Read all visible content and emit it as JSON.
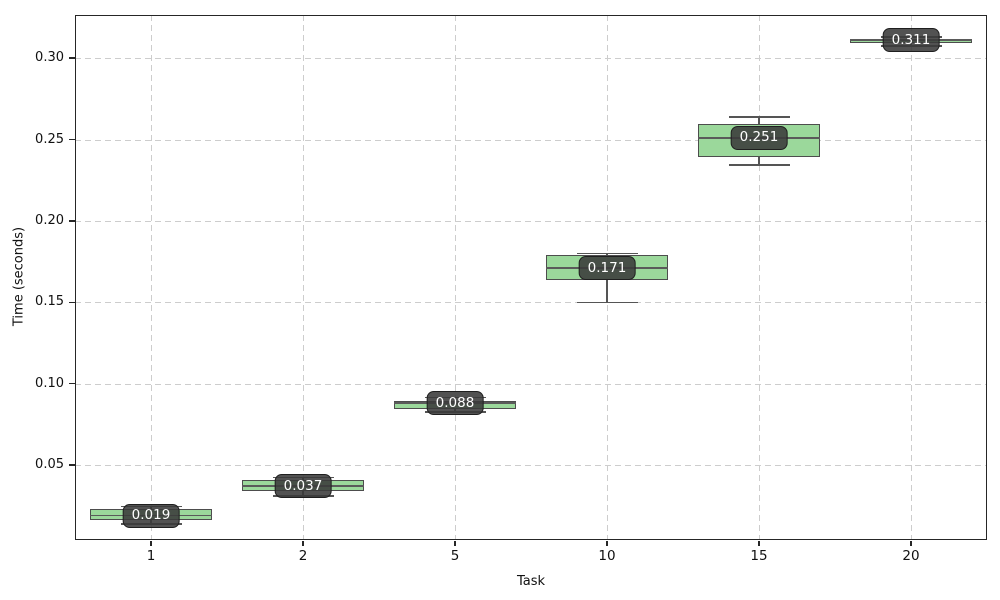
{
  "chart_data": {
    "type": "boxplot",
    "title": "",
    "xlabel": "Task",
    "ylabel": "Time (seconds)",
    "categories": [
      "1",
      "2",
      "5",
      "10",
      "15",
      "20"
    ],
    "y_tick_labels": [
      "0.05",
      "0.10",
      "0.15",
      "0.20",
      "0.25",
      "0.30"
    ],
    "yticks": [
      0.05,
      0.1,
      0.15,
      0.2,
      0.25,
      0.3
    ],
    "ylim": [
      0.004,
      0.3265
    ],
    "grid": true,
    "grid_style": "dashed",
    "legend": "none",
    "series": [
      {
        "category": "1",
        "whislo": 0.014,
        "q1": 0.016,
        "median": 0.019,
        "q3": 0.023,
        "whishi": 0.0245,
        "label": "0.019"
      },
      {
        "category": "2",
        "whislo": 0.031,
        "q1": 0.034,
        "median": 0.037,
        "q3": 0.041,
        "whishi": 0.0425,
        "label": "0.037"
      },
      {
        "category": "5",
        "whislo": 0.0825,
        "q1": 0.0845,
        "median": 0.088,
        "q3": 0.0895,
        "whishi": 0.0915,
        "label": "0.088"
      },
      {
        "category": "10",
        "whislo": 0.15,
        "q1": 0.1635,
        "median": 0.171,
        "q3": 0.179,
        "whishi": 0.18,
        "label": "0.171"
      },
      {
        "category": "15",
        "whislo": 0.2345,
        "q1": 0.2395,
        "median": 0.251,
        "q3": 0.2595,
        "whishi": 0.264,
        "label": "0.251"
      },
      {
        "category": "20",
        "whislo": 0.3075,
        "q1": 0.3095,
        "median": 0.311,
        "q3": 0.312,
        "whishi": 0.313,
        "label": "0.311"
      }
    ],
    "colors": {
      "box_fill": "#9bd89b",
      "box_edge": "#4d4d4d",
      "median": "#5a5a5a",
      "whisker": "#555555",
      "cap": "#555555",
      "grid": "#cdcdcd",
      "spine": "#262626",
      "label_bg": "#3a3a3a",
      "label_bg_opacity": 0.88,
      "label_border": "#1f1f1f",
      "label_text": "#ffffff",
      "background": "#ffffff"
    }
  }
}
